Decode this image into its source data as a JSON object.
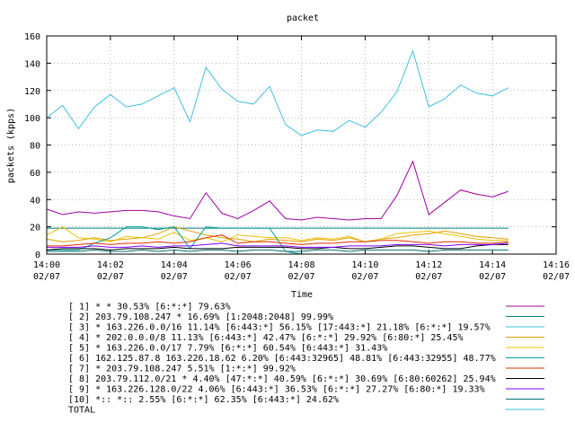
{
  "chart_data": {
    "type": "line",
    "title": "packet",
    "xlabel": "Time",
    "ylabel": "packets (kpps)",
    "ylim": [
      0,
      160
    ],
    "yticks": [
      "0",
      "20",
      "40",
      "60",
      "80",
      "100",
      "120",
      "140",
      "160"
    ],
    "xlim": [
      0,
      16
    ],
    "xticks": [
      {
        "time": "14:00",
        "date": "02/07"
      },
      {
        "time": "14:02",
        "date": "02/07"
      },
      {
        "time": "14:04",
        "date": "02/07"
      },
      {
        "time": "14:06",
        "date": "02/07"
      },
      {
        "time": "14:08",
        "date": "02/07"
      },
      {
        "time": "14:10",
        "date": "02/07"
      },
      {
        "time": "14:12",
        "date": "02/07"
      },
      {
        "time": "14:14",
        "date": "02/07"
      },
      {
        "time": "14:16",
        "date": "02/07"
      }
    ],
    "legend_placement": "bottom",
    "x": [
      0,
      0.5,
      1,
      1.5,
      2,
      2.5,
      3,
      3.5,
      4,
      4.5,
      5,
      5.5,
      6,
      6.5,
      7,
      7.5,
      8,
      8.5,
      9,
      9.5,
      10,
      10.5,
      11,
      11.5,
      12,
      12.5,
      13,
      13.5,
      14,
      14.5
    ],
    "series": [
      {
        "name": "[ 1] * * 30.53%  [6:*:*] 79.63%",
        "color": "#a000a0",
        "values": [
          33,
          29,
          31,
          30,
          31,
          32,
          32,
          31,
          28,
          26,
          45,
          30,
          26,
          32,
          39,
          26,
          25,
          27,
          26,
          25,
          26,
          26,
          43,
          68,
          29,
          38,
          47,
          44,
          42,
          46
        ]
      },
      {
        "name": "[ 2] 203.79.108.247 * 16.69%  [1:2048:2048] 99.99%",
        "color": "#008080",
        "values": [
          19,
          19,
          19,
          19,
          19,
          19,
          19,
          19,
          19,
          19,
          19,
          19,
          19,
          19,
          19,
          19,
          19,
          19,
          19,
          19,
          19,
          19,
          19,
          19,
          19,
          19,
          19,
          19,
          19,
          19
        ]
      },
      {
        "name": "[ 3] * 163.226.0.0/16 11.14%  [6:443:*] 56.15% [17:443:*] 21.18% [6:*:*] 19.57%",
        "color": "#40c0e0",
        "values": [
          100,
          109,
          92,
          108,
          117,
          108,
          110,
          116,
          122,
          97,
          137,
          121,
          112,
          110,
          123,
          95,
          87,
          91,
          90,
          98,
          93,
          104,
          119,
          149,
          108,
          114,
          124,
          118,
          116,
          122
        ]
      },
      {
        "name": "[ 4] * 202.0.0.0/8 11.13%  [6:443:*] 42.47% [6:*:*] 29.92% [6:80:*] 25.45%",
        "color": "#e0a000",
        "values": [
          11,
          9,
          10,
          12,
          10,
          11,
          12,
          15,
          20,
          17,
          14,
          12,
          11,
          9,
          11,
          10,
          9,
          11,
          10,
          12,
          9,
          11,
          12,
          14,
          15,
          17,
          15,
          13,
          12,
          11
        ]
      },
      {
        "name": "[ 5] * 163.226.0.0/17 7.79%  [6:*:*] 60.54% [6:443:*] 31.43%",
        "color": "#f0c000",
        "values": [
          14,
          20,
          12,
          11,
          9,
          13,
          12,
          11,
          16,
          10,
          12,
          9,
          14,
          13,
          12,
          12,
          10,
          12,
          11,
          13,
          9,
          11,
          15,
          16,
          17,
          15,
          13,
          11,
          10,
          10
        ]
      },
      {
        "name": "[ 6] 162.125.87.8 163.226.18.62 6.20%  [6:443:32965] 48.81% [6:443:32955] 48.77%",
        "color": "#00a0a0",
        "values": [
          3,
          3,
          3,
          8,
          12,
          20,
          20,
          18,
          20,
          4,
          20,
          19,
          19,
          19,
          19,
          2,
          0,
          0,
          0,
          0,
          0,
          0,
          0,
          0,
          0,
          0,
          0,
          0,
          0,
          0
        ]
      },
      {
        "name": "[ 7] * 203.79.108.247 5.51%  [1:*:*] 99.92%",
        "color": "#e03000",
        "values": [
          6,
          6,
          7,
          8,
          7,
          8,
          8,
          9,
          8,
          9,
          12,
          14,
          8,
          9,
          9,
          8,
          7,
          8,
          8,
          9,
          9,
          10,
          10,
          9,
          8,
          9,
          9,
          8,
          8,
          9
        ]
      },
      {
        "name": "[ 8] 203.79.112.0/21 * 4.40%  [47:*:*] 40.59% [6:*:*] 30.69% [6:80:60262] 25.94%",
        "color": "#000000",
        "values": [
          3,
          4,
          4,
          4,
          3,
          4,
          4,
          4,
          5,
          4,
          4,
          4,
          5,
          5,
          5,
          5,
          4,
          4,
          5,
          4,
          4,
          5,
          6,
          6,
          5,
          4,
          4,
          6,
          7,
          7
        ]
      },
      {
        "name": "[ 9] * 163.226.128.0/22 4.06%  [6:443:*] 36.53% [6:*:*] 27.27% [6:80:*] 19.33%",
        "color": "#8000ff",
        "values": [
          5,
          5,
          5,
          6,
          5,
          5,
          6,
          5,
          6,
          6,
          7,
          8,
          6,
          6,
          6,
          6,
          5,
          5,
          5,
          6,
          6,
          6,
          7,
          7,
          7,
          6,
          7,
          7,
          7,
          8
        ]
      },
      {
        "name": "[10] *:: *:: 2.55%  [6:*:*] 62.35% [6:443:*] 24.62%",
        "color": "#007070",
        "values": [
          2,
          2,
          2,
          3,
          2,
          2,
          3,
          2,
          3,
          2,
          3,
          3,
          2,
          3,
          3,
          2,
          2,
          3,
          3,
          2,
          3,
          3,
          3,
          3,
          2,
          3,
          3,
          3,
          3,
          3
        ]
      }
    ],
    "total_label": "TOTAL",
    "total_color": "#40c0e0"
  }
}
